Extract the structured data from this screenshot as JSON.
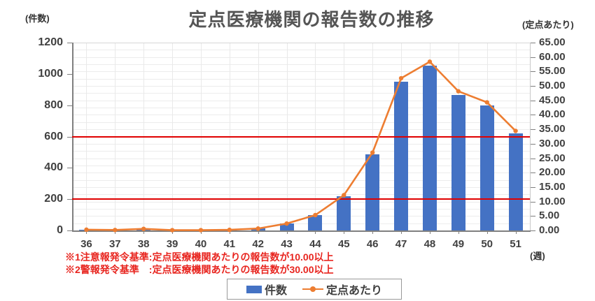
{
  "title": "定点医療機関の報告数の推移",
  "axis_titles": {
    "left": "(件数)",
    "right": "(定点あたり)",
    "x": "(週)"
  },
  "notes": [
    "※1注意報発令基準:定点医療機関あたりの報告数が10.00以上",
    "※2警報発令基準　:定点医療機関あたりの報告数が30.00以上"
  ],
  "legend": {
    "items": [
      {
        "label": "件数",
        "marker": "bar-swatch",
        "color": "#4472C4"
      },
      {
        "label": "定点あたり",
        "marker": "line-dot",
        "color": "#ED7D31"
      }
    ]
  },
  "colors": {
    "bar": "#4472C4",
    "line": "#ED7D31",
    "reference_line": "#E00000",
    "note_text": "#E8251F",
    "gridline": "#ECECEC",
    "axis_line": "#7F7F7F",
    "text": "#404040"
  },
  "chart_data": {
    "type": "combo",
    "categories": [
      "36",
      "37",
      "38",
      "39",
      "40",
      "41",
      "42",
      "43",
      "44",
      "45",
      "46",
      "47",
      "48",
      "49",
      "50",
      "51"
    ],
    "series": [
      {
        "name": "件数",
        "type": "bar",
        "axis": "left",
        "color": "#4472C4",
        "values": [
          5,
          3,
          10,
          2,
          2,
          4,
          12,
          43,
          96,
          220,
          485,
          948,
          1051,
          867,
          798,
          620
        ]
      },
      {
        "name": "定点あたり",
        "type": "line",
        "axis": "right",
        "color": "#ED7D31",
        "values": [
          0.28,
          0.17,
          0.56,
          0.11,
          0.11,
          0.22,
          0.67,
          2.39,
          5.33,
          12.22,
          26.94,
          52.67,
          58.39,
          48.17,
          44.33,
          34.44
        ]
      }
    ],
    "left_axis": {
      "label": "(件数)",
      "min": 0,
      "max": 1200,
      "tick_step": 200,
      "tick_labels": [
        "0",
        "200",
        "400",
        "600",
        "800",
        "1000",
        "1200"
      ]
    },
    "right_axis": {
      "label": "(定点あたり)",
      "min": 0,
      "max": 65,
      "tick_step": 5,
      "tick_labels": [
        "0.00",
        "5.00",
        "10.00",
        "15.00",
        "20.00",
        "25.00",
        "30.00",
        "35.00",
        "40.00",
        "45.00",
        "50.00",
        "55.00",
        "60.00",
        "65.00"
      ]
    },
    "x_axis": {
      "label": "(週)"
    },
    "reference_lines": [
      {
        "axis": "left",
        "value": 600,
        "color": "#E00000"
      },
      {
        "axis": "left",
        "value": 200,
        "color": "#E00000"
      }
    ],
    "gridlines": {
      "horizontal_step_right_axis": 2.5,
      "vertical": "category-centers"
    },
    "legend_position": "bottom"
  }
}
